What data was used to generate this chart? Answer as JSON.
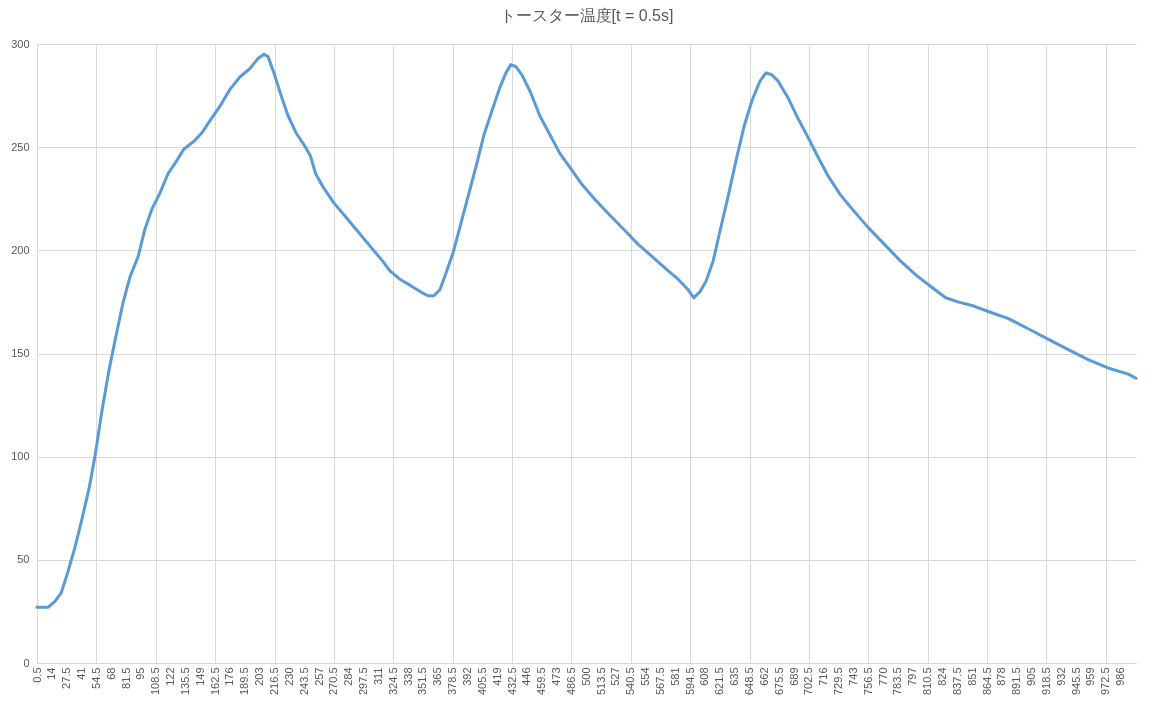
{
  "chart_data": {
    "type": "line",
    "title": "トースター温度[t = 0.5s]",
    "x": [
      0.5,
      10.5,
      17,
      22.5,
      28.5,
      35,
      41.5,
      48,
      53.5,
      59.5,
      66,
      72.5,
      78.5,
      85,
      92.5,
      98.5,
      105,
      112.5,
      119.5,
      127,
      134,
      143.5,
      150.5,
      158,
      167,
      176,
      185,
      194,
      201.5,
      207,
      210.5,
      216,
      222.5,
      229,
      236,
      243.5,
      249,
      254,
      261.5,
      270.5,
      281.5,
      292.5,
      303.5,
      314.5,
      321.5,
      330.5,
      340,
      349,
      356,
      361.5,
      367,
      372.5,
      379,
      385,
      392.5,
      400,
      407,
      414.5,
      421.5,
      427,
      431.5,
      436,
      441.5,
      449,
      458,
      467,
      476,
      485.5,
      496,
      509,
      521.5,
      534.5,
      547,
      560,
      572.5,
      583.5,
      592.5,
      598,
      603.5,
      609,
      615.5,
      621.5,
      629,
      636,
      643.5,
      651,
      658,
      663.5,
      669,
      674.5,
      683.5,
      692.5,
      701.5,
      711,
      720,
      731,
      743.5,
      756.5,
      771,
      785.5,
      800,
      814.5,
      827,
      838,
      852.5,
      867.5,
      883.5,
      902,
      920,
      938,
      956.5,
      974.5,
      993,
      1000
    ],
    "series": [
      {
        "color": "#5b9bd5",
        "values": [
          27,
          27,
          30,
          34,
          44,
          56,
          70,
          85,
          101,
          122,
          142,
          159,
          174,
          187,
          197,
          210,
          220,
          228,
          237,
          243,
          249,
          253,
          257,
          263,
          270,
          278,
          284,
          288,
          293,
          295,
          294,
          286,
          275,
          265,
          257,
          251,
          246,
          237,
          230,
          223,
          216,
          209,
          202,
          195,
          190,
          186,
          183,
          180,
          178,
          178,
          181,
          189,
          199,
          211,
          226,
          241,
          256,
          268,
          279,
          286,
          290,
          289,
          285,
          277,
          265,
          256,
          247,
          240,
          232,
          224,
          217,
          210,
          203,
          197,
          191,
          186,
          181,
          177,
          180,
          185,
          195,
          209,
          226,
          243,
          260,
          273,
          282,
          286,
          285,
          282,
          274,
          264,
          255,
          245,
          236,
          227,
          219,
          211,
          203,
          195,
          188,
          182,
          177,
          175,
          173,
          170,
          167,
          162,
          157,
          152,
          147,
          143,
          140,
          138
        ]
      }
    ],
    "xlim": [
      0.5,
      1000
    ],
    "xticks": [
      0.5,
      14,
      27.5,
      41,
      54.5,
      68,
      81.5,
      95,
      108.5,
      122,
      135.5,
      149,
      162.5,
      176,
      189.5,
      203,
      216.5,
      230,
      243.5,
      257,
      270.5,
      284,
      297.5,
      311,
      324.5,
      338,
      351.5,
      365,
      378.5,
      392,
      405.5,
      419,
      432.5,
      446,
      459.5,
      473,
      486.5,
      500,
      513.5,
      527,
      540.5,
      554,
      567.5,
      581,
      594.5,
      608,
      621.5,
      635,
      648.5,
      662,
      675.5,
      689,
      702.5,
      716,
      729.5,
      743,
      756.5,
      770,
      783.5,
      797,
      810.5,
      824,
      837.5,
      851,
      864.5,
      878,
      891.5,
      905,
      918.5,
      932,
      945.5,
      959,
      972.5,
      986
    ],
    "ylim": [
      0,
      300
    ],
    "yticks": [
      0,
      50,
      100,
      150,
      200,
      250,
      300
    ],
    "grid": true
  }
}
